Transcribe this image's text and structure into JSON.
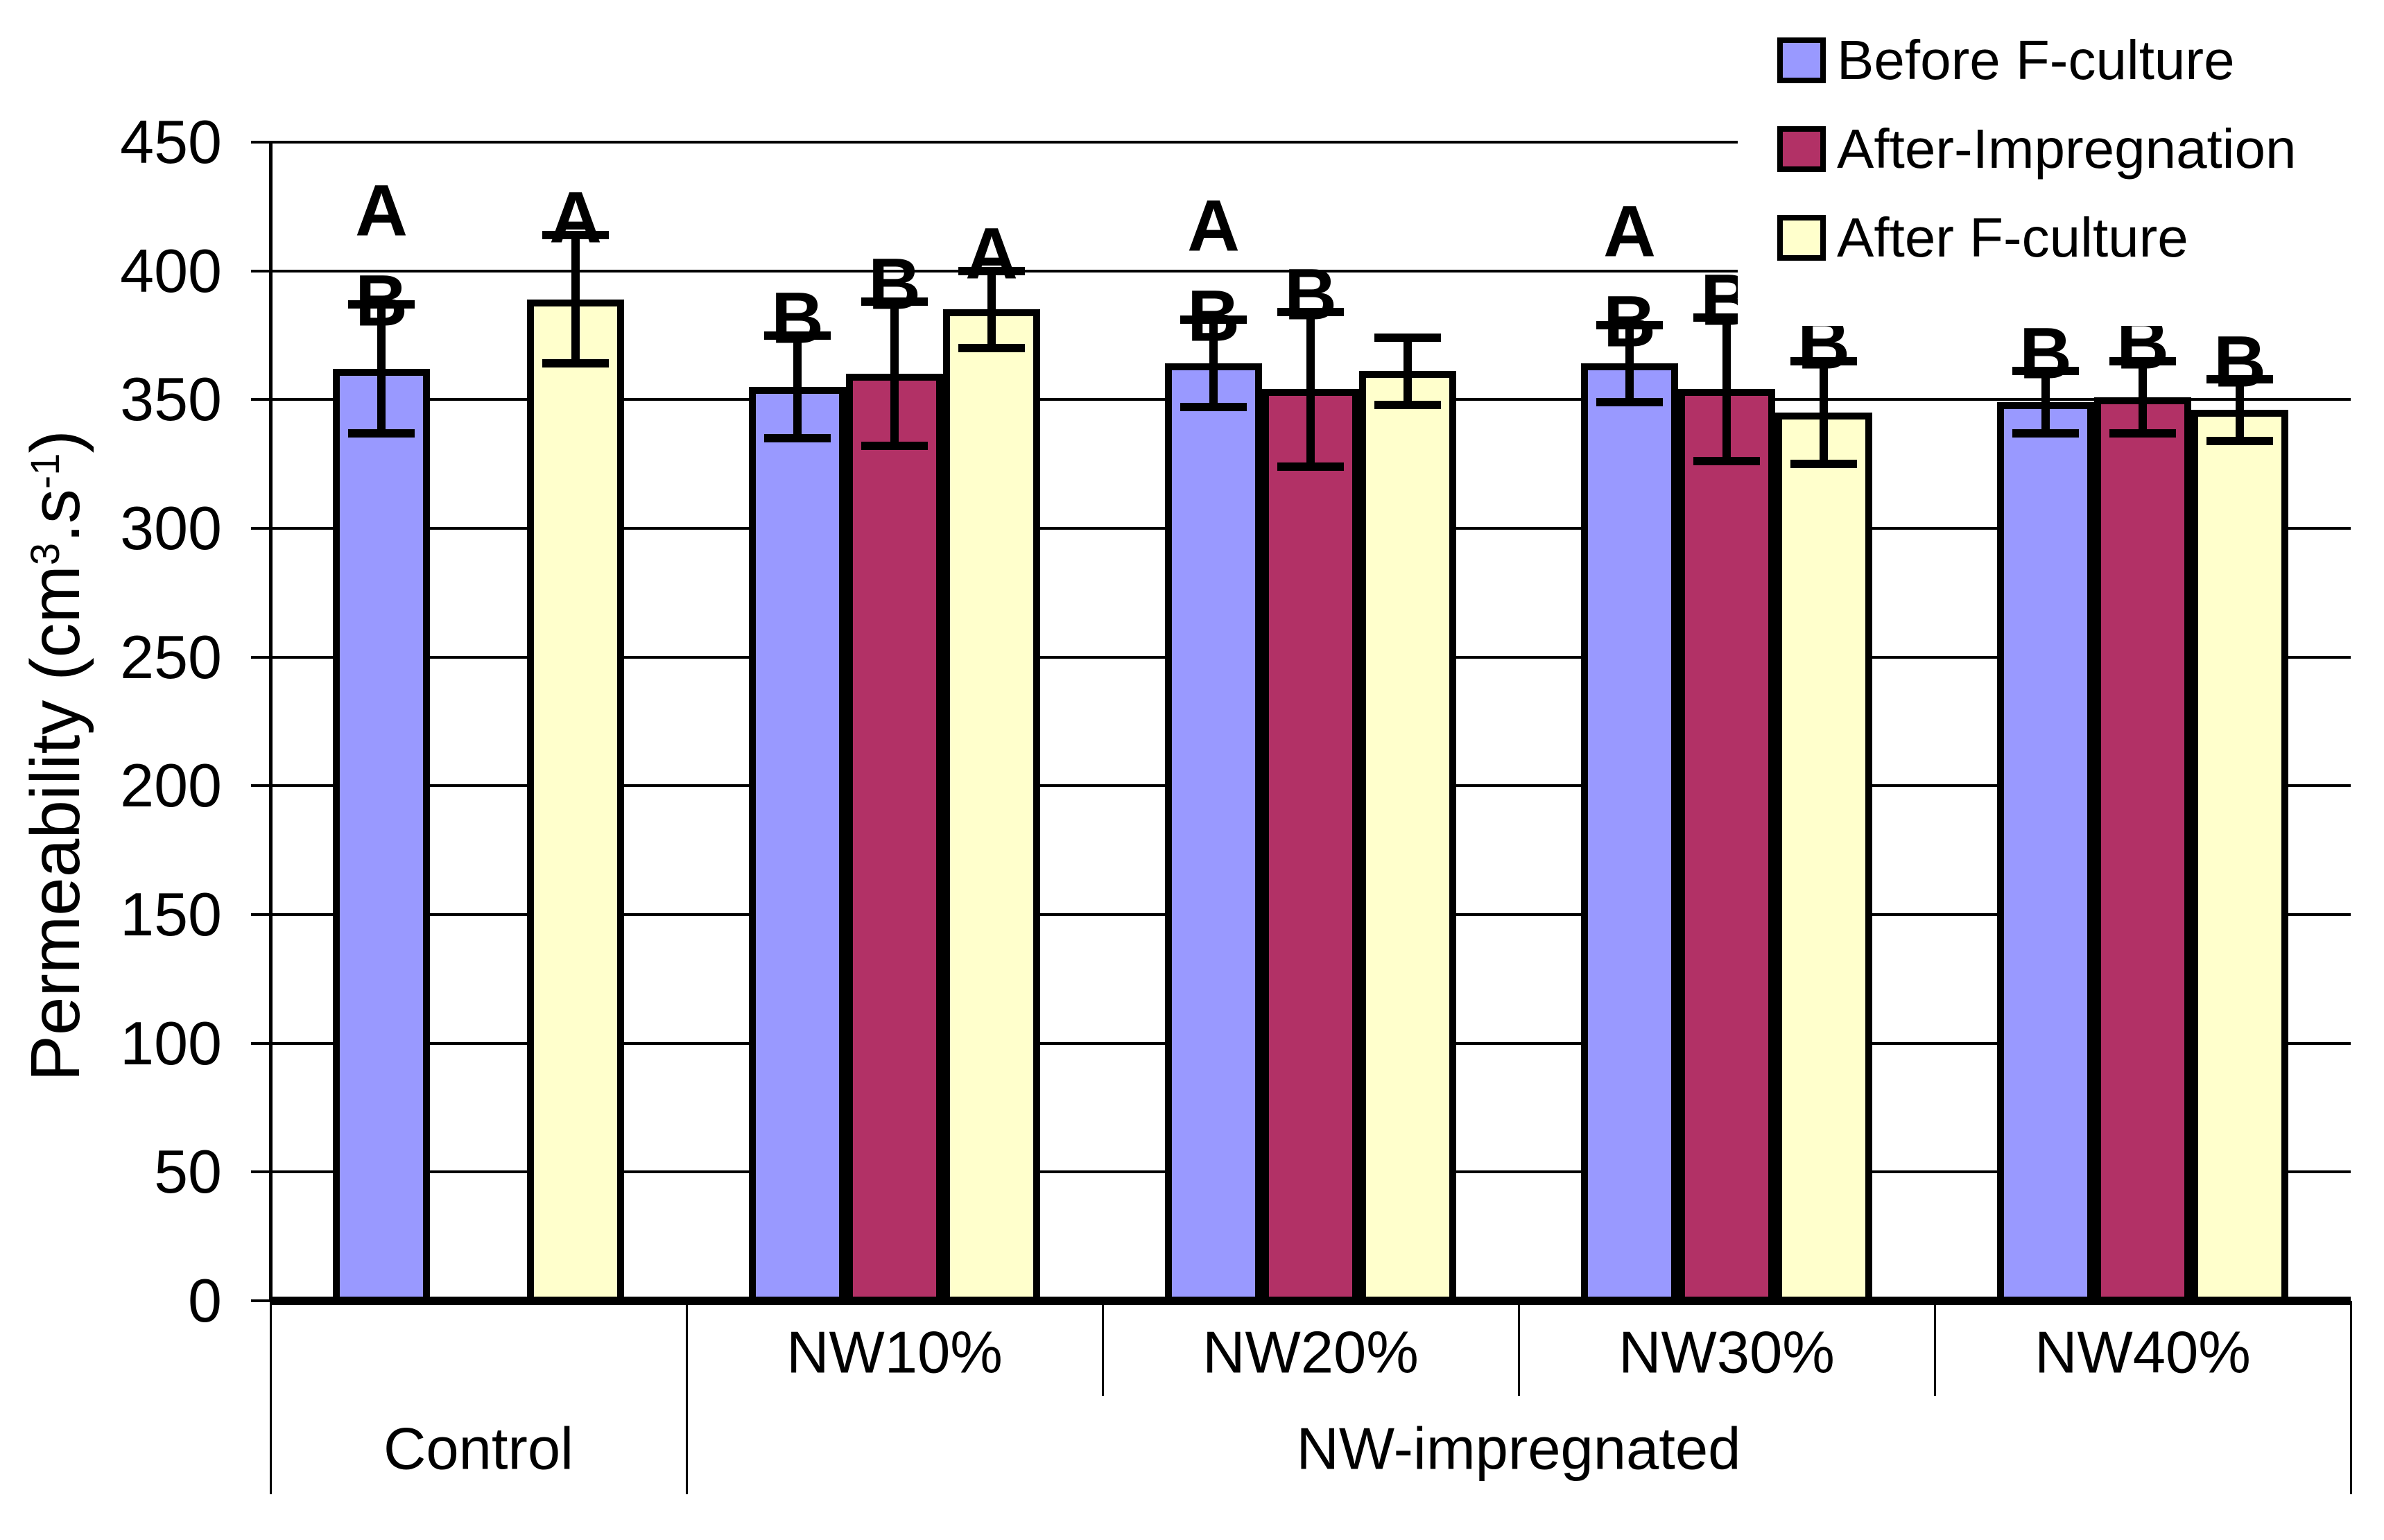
{
  "chart_data": {
    "type": "bar",
    "title": "",
    "ylabel": "Permeability (cm3.s-1)",
    "ylabel_parts": [
      {
        "text": "Permeability (cm"
      },
      {
        "text": "3",
        "sup": true
      },
      {
        "text": ".s"
      },
      {
        "text": "-1",
        "sup": true
      },
      {
        "text": ")"
      }
    ],
    "ylim": [
      0,
      450
    ],
    "ytick_step": 50,
    "ytick_labels": [
      "0",
      "50",
      "100",
      "150",
      "200",
      "250",
      "300",
      "350",
      "400",
      "450"
    ],
    "grid": true,
    "legend_position": "top-right",
    "categories": [
      "Control",
      "NW10%",
      "NW20%",
      "NW30%",
      "NW40%"
    ],
    "row1_labels": [
      "",
      "NW10%",
      "NW20%",
      "NW30%",
      "NW40%"
    ],
    "row2_spans": [
      {
        "label": "Control",
        "from": 0,
        "to": 1
      },
      {
        "label": "NW-impregnated",
        "from": 1,
        "to": 5
      }
    ],
    "series": [
      {
        "name": "Before F-culture",
        "color": "#9999FF",
        "values": [
          362,
          355,
          364,
          364,
          349
        ],
        "errors": [
          25,
          20,
          17,
          15,
          12
        ],
        "letters": [
          [
            "A",
            "B"
          ],
          [
            "B"
          ],
          [
            "A",
            "B"
          ],
          [
            "A",
            "B"
          ],
          [
            "B"
          ]
        ]
      },
      {
        "name": "After-Impregnation",
        "color": "#B23166",
        "values": [
          null,
          360,
          354,
          354,
          351
        ],
        "errors": [
          null,
          28,
          30,
          28,
          14
        ],
        "letters": [
          [],
          [
            "B"
          ],
          [
            "B"
          ],
          [
            "B"
          ],
          [
            "B"
          ]
        ]
      },
      {
        "name": "After F-culture",
        "color": "#FFFFCC",
        "values": [
          389,
          385,
          361,
          345,
          346
        ],
        "errors": [
          25,
          15,
          13,
          20,
          12
        ],
        "letters": [
          [
            "A"
          ],
          [
            "A"
          ],
          [],
          [
            "B"
          ],
          [
            "B"
          ]
        ]
      }
    ],
    "colors": {
      "axis": "#000000",
      "background": "#FFFFFF",
      "series_blue": "#9999FF",
      "series_maroon": "#B23166",
      "series_yellow": "#FFFFCC"
    }
  }
}
